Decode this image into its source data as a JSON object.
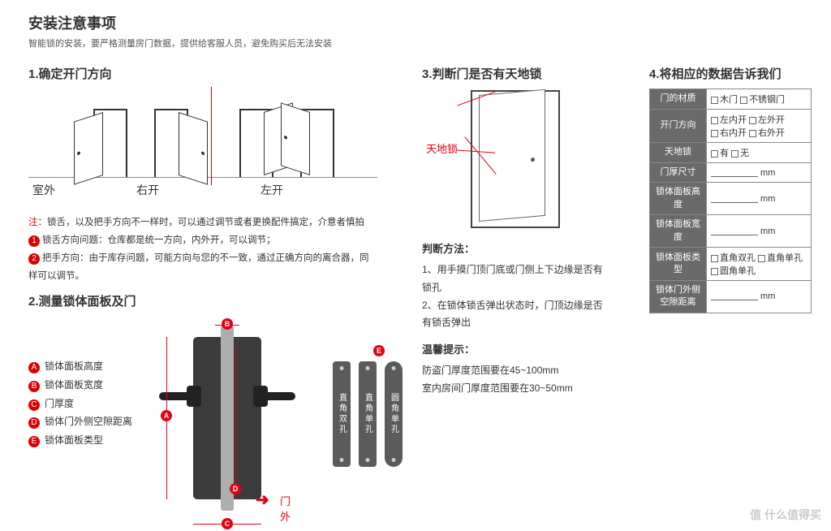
{
  "colors": {
    "accent": "#e60012",
    "tableHeader": "#6a6a6a",
    "lockBody": "#3b3b3b"
  },
  "header": {
    "title": "安装注意事项",
    "sub": "智能锁的安装，要严格测量房门数据，提供给客服人员，避免购买后无法安装"
  },
  "sec1": {
    "title": "1.确定开门方向",
    "labels": {
      "outdoor": "室外",
      "right": "右开",
      "left": "左开"
    },
    "note0_prefix": "注：",
    "note0": "锁舌，以及把手方向不一样时，可以通过调节或者更换配件搞定，介意者慎拍",
    "note1": "锁舌方向问题：仓库都是统一方向，内外开，可以调节；",
    "note2": "把手方向：由于库存问题，可能方向与您的不一致，通过正确方向的离合器，同样可以调节。"
  },
  "sec2": {
    "title": "2.测量锁体面板及门",
    "legend": [
      {
        "b": "A",
        "t": "锁体面板高度"
      },
      {
        "b": "B",
        "t": "锁体面板宽度"
      },
      {
        "b": "C",
        "t": "门厚度"
      },
      {
        "b": "D",
        "t": "锁体门外侧空隙距离"
      },
      {
        "b": "E",
        "t": "锁体面板类型"
      }
    ],
    "sideplates": [
      "直角双孔",
      "直角单孔",
      "圆角单孔"
    ],
    "arrow": "门外"
  },
  "sec3": {
    "title": "3.判断门是否有天地锁",
    "tag": "天地锁",
    "mTitle": "判断方法：",
    "m1": "1、用手摸门顶门底或门侧上下边缘是否有锁孔",
    "m2": "2、在锁体锁舌弹出状态时，门顶边缘是否有锁舌弹出",
    "tipTitle": "温馨提示：",
    "t1": "防盗门厚度范围要在45~100mm",
    "t2": "室内房间门厚度范围要在30~50mm"
  },
  "sec4": {
    "title": "4.将相应的数据告诉我们",
    "rows": [
      {
        "h": "门的材质",
        "opts": [
          "木门",
          "不锈钢门"
        ]
      },
      {
        "h": "开门方向",
        "opts": [
          "左内开",
          "左外开",
          "右内开",
          "右外开"
        ]
      },
      {
        "h": "天地锁",
        "opts": [
          "有",
          "无"
        ]
      },
      {
        "h": "门厚尺寸",
        "unit": "mm"
      },
      {
        "h": "锁体面板高度",
        "unit": "mm"
      },
      {
        "h": "锁体面板宽度",
        "unit": "mm"
      },
      {
        "h": "锁体面板类型",
        "opts": [
          "直角双孔",
          "直角单孔",
          "圆角单孔"
        ]
      },
      {
        "h": "锁体门外侧空隙距离",
        "unit": "mm"
      }
    ]
  },
  "watermark": "值 什么值得买"
}
